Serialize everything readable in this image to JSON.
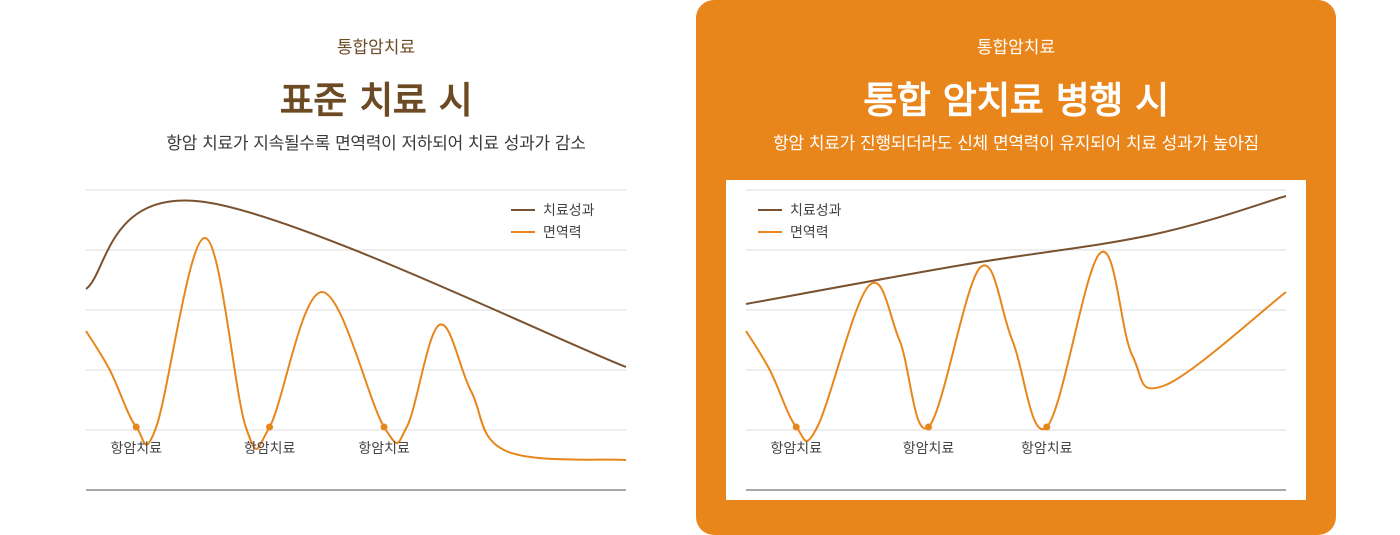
{
  "colors": {
    "accent": "#e8861c",
    "brown": "#7a5230",
    "title_brown": "#6b4a24"
  },
  "panels": [
    {
      "eyebrow": "통합암치료",
      "title": "표준 치료 시",
      "subtitle": "항암 치료가 지속될수록 면역력이 저하되어 치료 성과가 감소"
    },
    {
      "eyebrow": "통합암치료",
      "title": "통합 암치료 병행 시",
      "subtitle": "항암 치료가 진행되더라도 신체 면역력이 유지되어 치료 성과가 높아짐"
    }
  ],
  "chart_data": [
    {
      "type": "line",
      "title": "표준 치료 시",
      "xlim": [
        0,
        100
      ],
      "ylim": [
        0,
        100
      ],
      "grid": true,
      "legend": {
        "placement": "top-right",
        "entries": [
          "치료성과",
          "면역력"
        ]
      },
      "series": [
        {
          "name": "치료성과",
          "color": "#7a5230",
          "x": [
            0,
            22,
            100
          ],
          "y": [
            67,
            96,
            41
          ]
        },
        {
          "name": "면역력",
          "color": "#e8861c",
          "x": [
            0,
            4.4,
            9.3,
            13,
            22,
            29.6,
            34,
            43.7,
            55.2,
            59.4,
            65.4,
            71.3,
            77.8,
            100
          ],
          "y": [
            53,
            40,
            21,
            21,
            84,
            21,
            21,
            66,
            21,
            21,
            55,
            33,
            13,
            10
          ]
        }
      ],
      "annotations": [
        {
          "label": "항암치료",
          "x": 9.3,
          "y": 21
        },
        {
          "label": "항암치료",
          "x": 34,
          "y": 21
        },
        {
          "label": "항암치료",
          "x": 55.2,
          "y": 21
        }
      ]
    },
    {
      "type": "line",
      "title": "통합 암치료 병행 시",
      "xlim": [
        0,
        100
      ],
      "ylim": [
        0,
        100
      ],
      "grid": true,
      "legend": {
        "placement": "top-left",
        "entries": [
          "치료성과",
          "면역력"
        ]
      },
      "series": [
        {
          "name": "치료성과",
          "color": "#7a5230",
          "x": [
            0,
            40,
            75,
            100
          ],
          "y": [
            62,
            75,
            85,
            98
          ]
        },
        {
          "name": "면역력",
          "color": "#e8861c",
          "x": [
            0,
            4.4,
            9.3,
            13.2,
            22.7,
            28.4,
            33.8,
            43.3,
            49.3,
            55.7,
            65.6,
            71.5,
            77.7,
            100
          ],
          "y": [
            53,
            40,
            21,
            21,
            68,
            50,
            21,
            74,
            50,
            21,
            79,
            45,
            35,
            66
          ]
        }
      ],
      "annotations": [
        {
          "label": "항암치료",
          "x": 9.3,
          "y": 21
        },
        {
          "label": "항암치료",
          "x": 33.8,
          "y": 21
        },
        {
          "label": "항암치료",
          "x": 55.7,
          "y": 21
        }
      ]
    }
  ]
}
